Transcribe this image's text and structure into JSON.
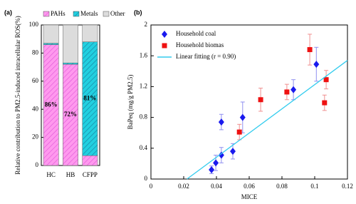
{
  "chart_data": [
    {
      "type": "stacked_bar",
      "title": "(a)",
      "ylabel": "Relative contribution to PM2.5-induced intracellular ROS(%)",
      "categories": [
        "HC",
        "HB",
        "CFPP"
      ],
      "series": [
        {
          "name": "PAHs",
          "color": "#ff99ee",
          "hatch": "#e055d8",
          "values": [
            86,
            72,
            7
          ],
          "value_labels": [
            "86%",
            "72%",
            null
          ]
        },
        {
          "name": "Metals",
          "color": "#22d0e0",
          "hatch": "#1a7a9a",
          "values": [
            1,
            1,
            81
          ],
          "value_labels": [
            null,
            null,
            "81%"
          ]
        },
        {
          "name": "Other",
          "color": "#dcdcdc",
          "values": [
            13,
            27,
            12
          ]
        }
      ],
      "ylim": [
        0,
        100
      ],
      "yticks": [
        0,
        20,
        40,
        60,
        80,
        100
      ]
    },
    {
      "type": "scatter",
      "title": "(b)",
      "xlabel": "MICE",
      "ylabel": "BaPeq (mg/g PM2.5)",
      "series": [
        {
          "name": "Household coal",
          "color": "#1a1aee",
          "marker": "diamond",
          "x": [
            0.037,
            0.0396,
            0.043,
            0.043,
            0.05,
            0.056,
            0.087,
            0.101
          ],
          "values": [
            0.12,
            0.21,
            0.31,
            0.74,
            0.36,
            0.8,
            1.16,
            1.49
          ],
          "errors": [
            0.05,
            0.1,
            0.1,
            0.1,
            0.1,
            0.2,
            0.13,
            0.22
          ]
        },
        {
          "name": "Household biomas",
          "color": "#ee1111",
          "marker": "square",
          "x": [
            0.054,
            0.067,
            0.083,
            0.097,
            0.107,
            0.106
          ],
          "values": [
            0.61,
            1.03,
            1.13,
            1.68,
            1.29,
            0.99
          ],
          "errors": [
            0.1,
            0.15,
            0.1,
            0.2,
            0.12,
            0.1
          ]
        },
        {
          "name": "Linear fitting (r = 0.90)",
          "color": "#33ccee",
          "marker": "line",
          "x": [
            0.022,
            0.12
          ],
          "values": [
            0,
            1.54
          ]
        }
      ],
      "xlim": [
        0,
        0.12
      ],
      "xticks": [
        0,
        0.02,
        0.04,
        0.06,
        0.08,
        0.1,
        0.12
      ],
      "ylim": [
        0,
        2
      ],
      "yticks": [
        0,
        0.4,
        0.8,
        1.2,
        1.6,
        2
      ]
    }
  ]
}
